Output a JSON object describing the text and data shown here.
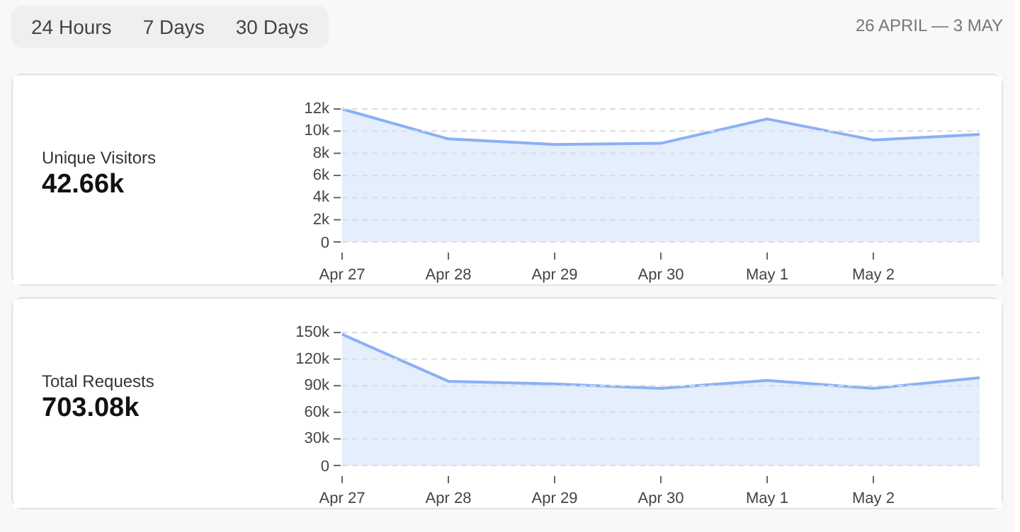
{
  "chart_data": [
    {
      "type": "area",
      "annotations": [
        "24 Hours",
        "7 Days",
        "30 Days",
        "26 APRIL — 3 MAY",
        "Unique Visitors",
        "42.66k"
      ],
      "categories": [
        "Apr 27",
        "Apr 28",
        "Apr 29",
        "Apr 30",
        "May 1",
        "May 2",
        null
      ],
      "series": [
        {
          "color": "#8ab0f5",
          "values": [
            12000,
            9300,
            8800,
            8900,
            11100,
            9200,
            9700
          ]
        }
      ],
      "ylim": [
        0,
        12000
      ],
      "yticks": [
        0,
        {
          "value": 2000,
          "label": "2k"
        },
        {
          "value": 4000,
          "label": "4k"
        },
        {
          "value": 6000,
          "label": "6k"
        },
        {
          "value": 8000,
          "label": "8k"
        },
        {
          "value": 10000,
          "label": "10k"
        },
        {
          "value": 12000,
          "label": "12k"
        }
      ],
      "grid": "y"
    },
    {
      "type": "area",
      "annotations": [
        "Total Requests",
        "703.08k"
      ],
      "categories": [
        "Apr 27",
        "Apr 28",
        "Apr 29",
        "Apr 30",
        "May 1",
        "May 2",
        null
      ],
      "series": [
        {
          "color": "#8ab0f5",
          "values": [
            148000,
            95000,
            92000,
            87000,
            96000,
            87000,
            99000
          ]
        }
      ],
      "ylim": [
        0,
        150000
      ],
      "yticks": [
        0,
        {
          "value": 30000,
          "label": "30k"
        },
        {
          "value": 60000,
          "label": "60k"
        },
        {
          "value": 90000,
          "label": "90k"
        },
        {
          "value": 120000,
          "label": "120k"
        },
        {
          "value": 150000,
          "label": "150k"
        }
      ],
      "grid": "y"
    }
  ]
}
